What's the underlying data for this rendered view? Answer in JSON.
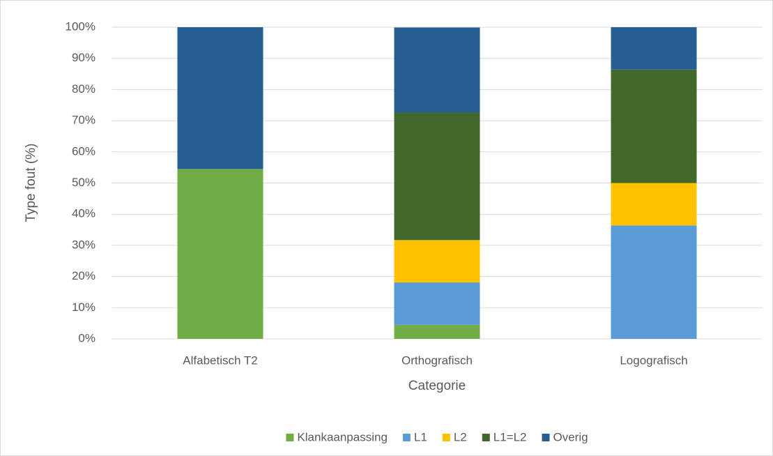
{
  "chart_data": {
    "type": "stacked_bar",
    "xlabel": "Categorie",
    "ylabel": "Type fout (%)",
    "categories": [
      "Alfabetisch T2",
      "Orthografisch",
      "Logografisch"
    ],
    "series": [
      {
        "name": "Klankaanpassing",
        "color": "#70ad47",
        "values": [
          54.5,
          4.5,
          0
        ]
      },
      {
        "name": "L1",
        "color": "#5b9bd5",
        "values": [
          0,
          13.6,
          36.4
        ]
      },
      {
        "name": "L2",
        "color": "#ffc000",
        "values": [
          0,
          13.6,
          13.6
        ]
      },
      {
        "name": "L1=L2",
        "color": "#43682b",
        "values": [
          0,
          40.9,
          36.4
        ]
      },
      {
        "name": "Overig",
        "color": "#255e91",
        "values": [
          45.5,
          27.3,
          13.6
        ]
      }
    ],
    "ylim": [
      0,
      100
    ],
    "yticks": [
      {
        "value": 0,
        "label": "0%"
      },
      {
        "value": 10,
        "label": "10%"
      },
      {
        "value": 20,
        "label": "20%"
      },
      {
        "value": 30,
        "label": "30%"
      },
      {
        "value": 40,
        "label": "40%"
      },
      {
        "value": 50,
        "label": "50%"
      },
      {
        "value": 60,
        "label": "60%"
      },
      {
        "value": 70,
        "label": "70%"
      },
      {
        "value": 80,
        "label": "80%"
      },
      {
        "value": 90,
        "label": "90%"
      },
      {
        "value": 100,
        "label": "100%"
      }
    ],
    "grid": true,
    "legend": "bottom"
  }
}
